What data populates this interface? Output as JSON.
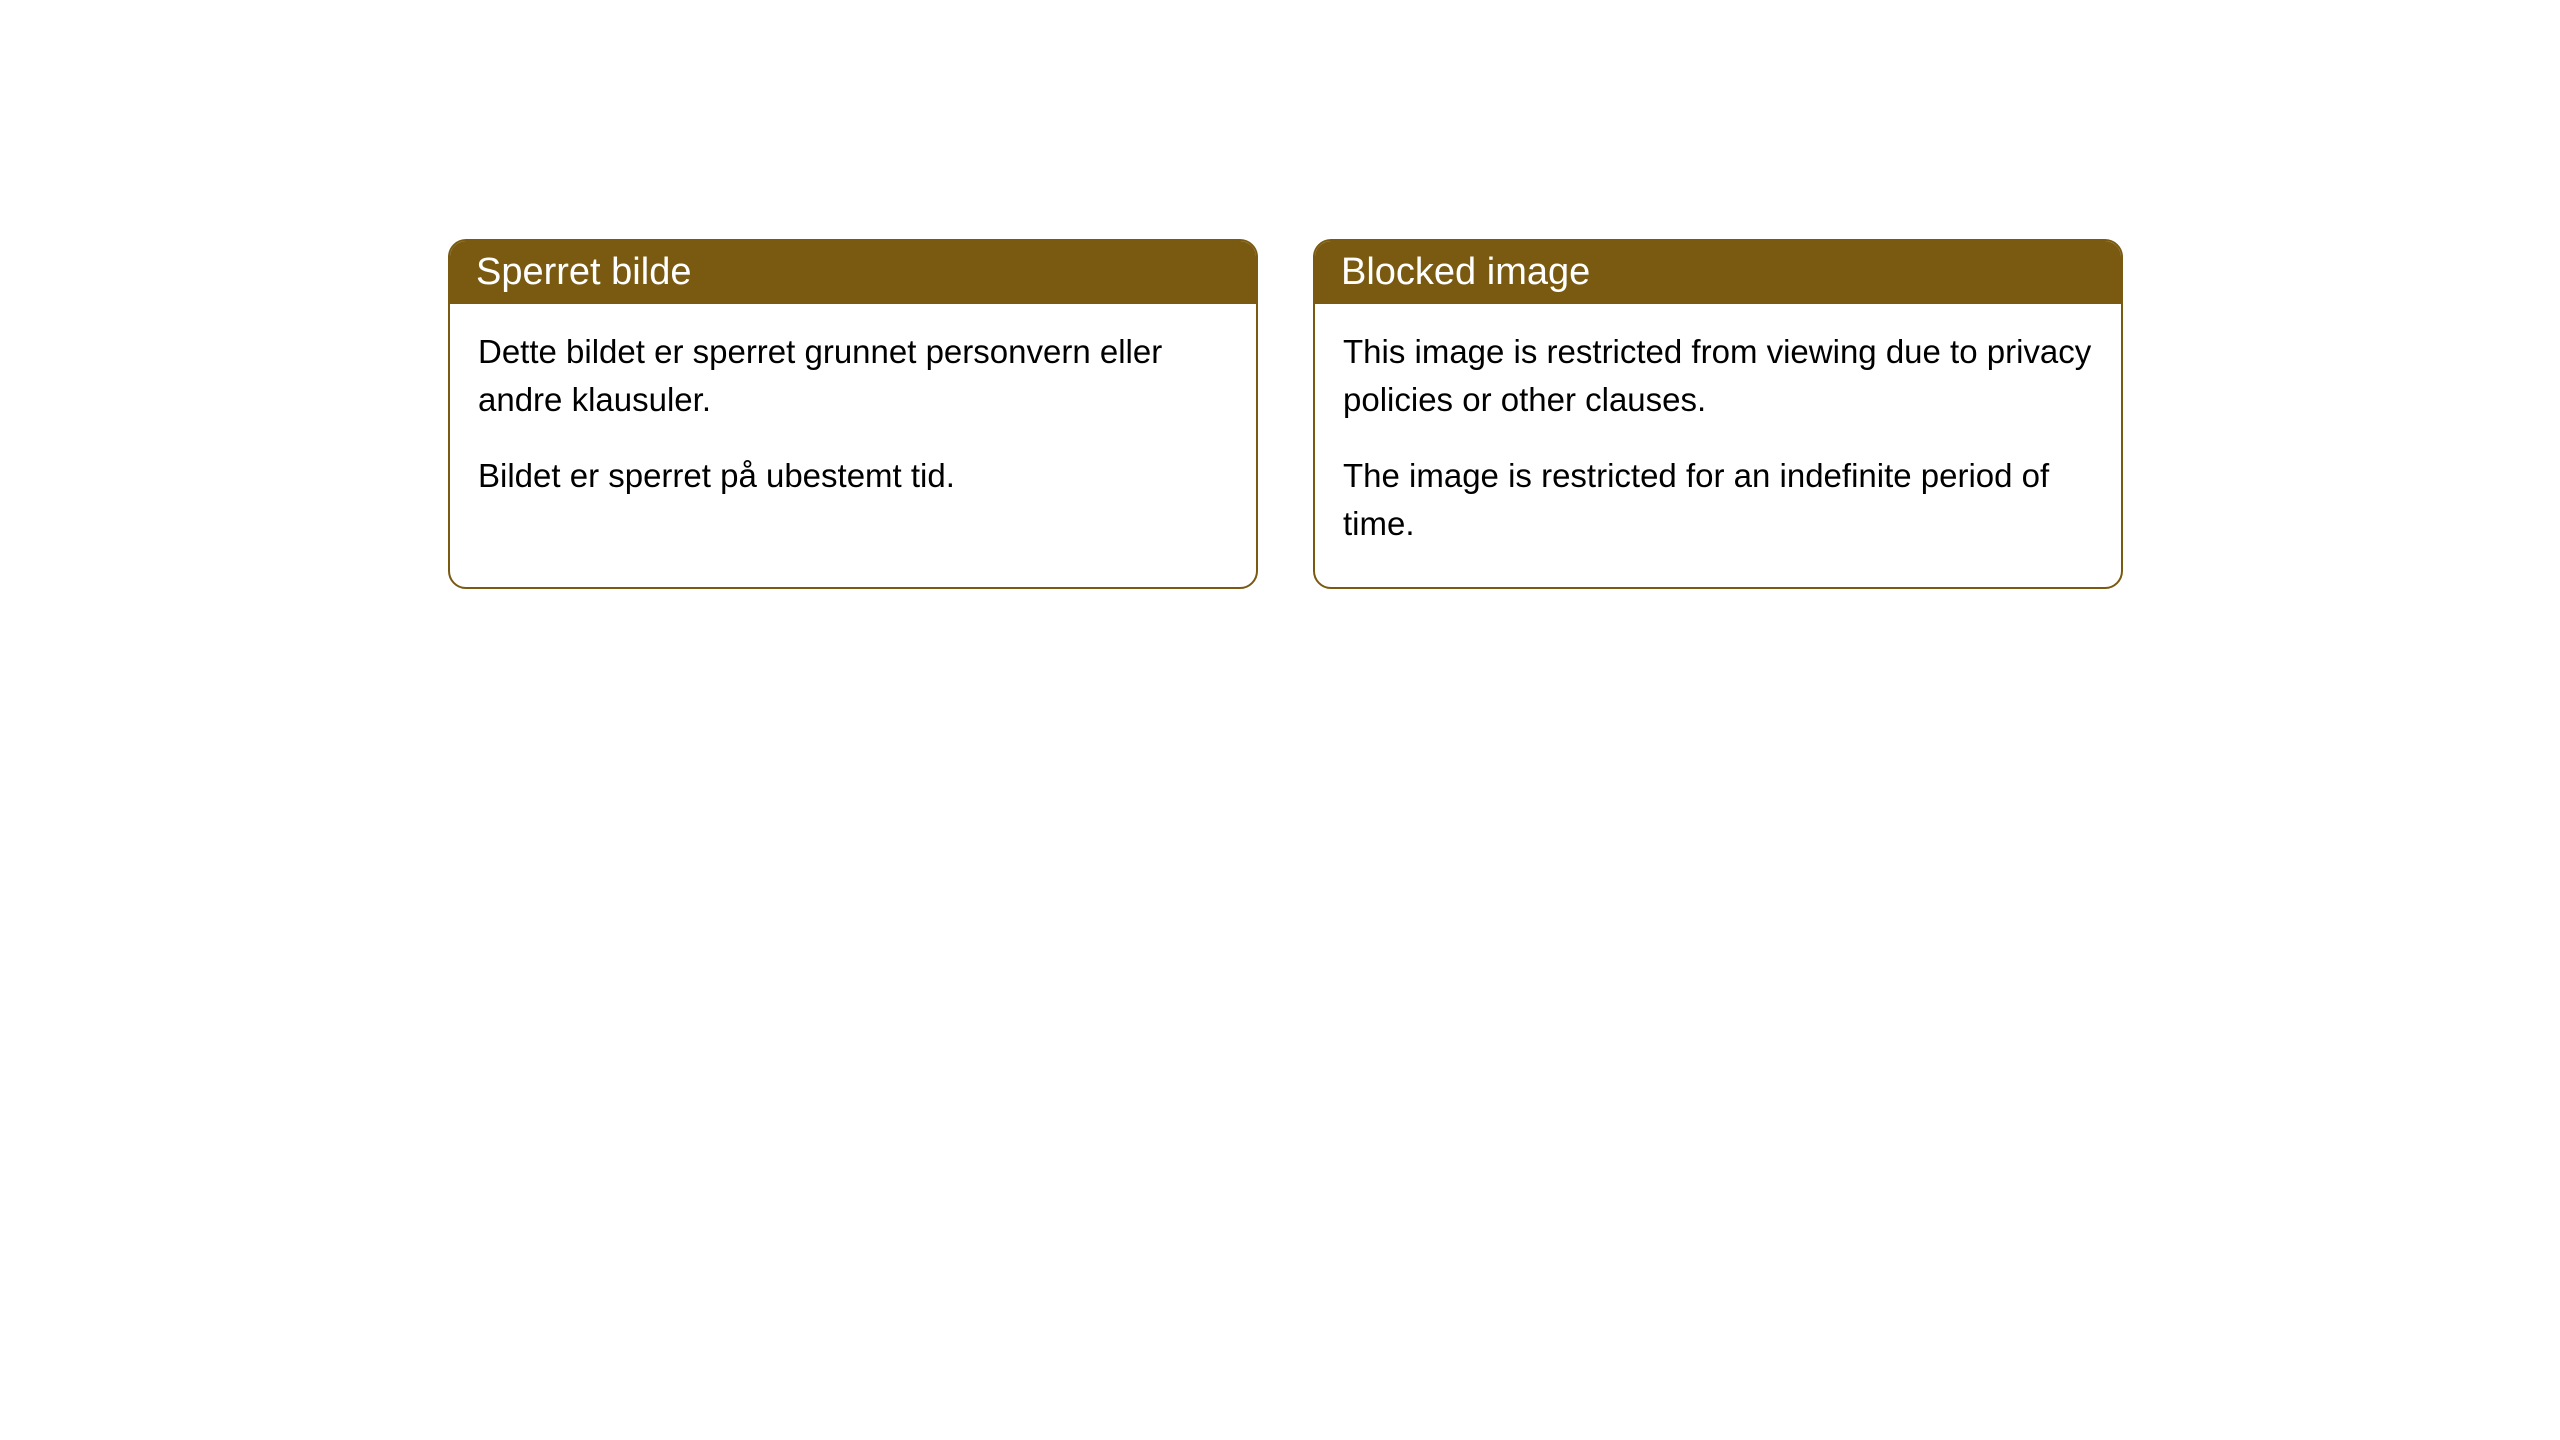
{
  "cards": [
    {
      "header": "Sperret bilde",
      "paragraph1": "Dette bildet er sperret grunnet personvern eller andre klausuler.",
      "paragraph2": "Bildet er sperret på ubestemt tid."
    },
    {
      "header": "Blocked image",
      "paragraph1": "This image is restricted from viewing due to privacy policies or other clauses.",
      "paragraph2": "The image is restricted for an indefinite period of time."
    }
  ],
  "styling": {
    "header_bg": "#7a5a10",
    "header_color": "#ffffff",
    "border_color": "#7a5a10",
    "body_bg": "#ffffff",
    "body_color": "#000000",
    "border_radius": 18,
    "header_fontsize": 38,
    "body_fontsize": 33
  }
}
